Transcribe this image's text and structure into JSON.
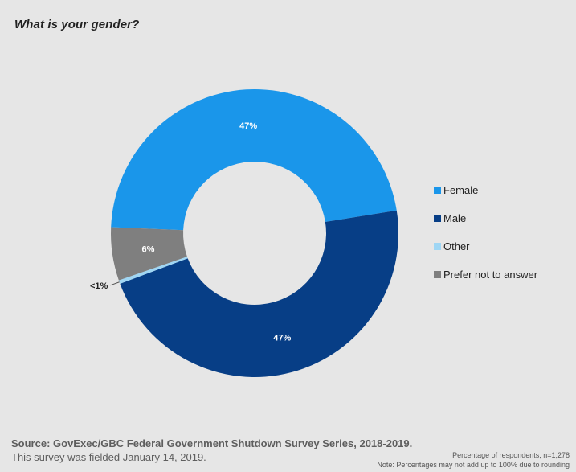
{
  "title": "What is your gender?",
  "chart_data": {
    "type": "pie",
    "donut": true,
    "categories": [
      "Female",
      "Male",
      "Other",
      "Prefer not to answer"
    ],
    "values": [
      47,
      47,
      0.4,
      6
    ],
    "data_labels": [
      "47%",
      "47%",
      "<1%",
      "6%"
    ],
    "colors": [
      "#1a96ea",
      "#073e86",
      "#9fd6f4",
      "#7f7f7f"
    ],
    "legend_placement": "right",
    "label_color": "#ffffff"
  },
  "legend": [
    {
      "label": "Female",
      "color": "#1a96ea"
    },
    {
      "label": "Male",
      "color": "#073e86"
    },
    {
      "label": "Other",
      "color": "#9fd6f4"
    },
    {
      "label": "Prefer not to answer",
      "color": "#7f7f7f"
    }
  ],
  "footer": {
    "source": "Source: GovExec/GBC Federal Government Shutdown Survey Series, 2018-2019.",
    "fielded": "This survey was fielded January 14, 2019.",
    "respondents": "Percentage of respondents, n=1,278",
    "note": "Note: Percentages may not add up to 100% due to rounding"
  }
}
